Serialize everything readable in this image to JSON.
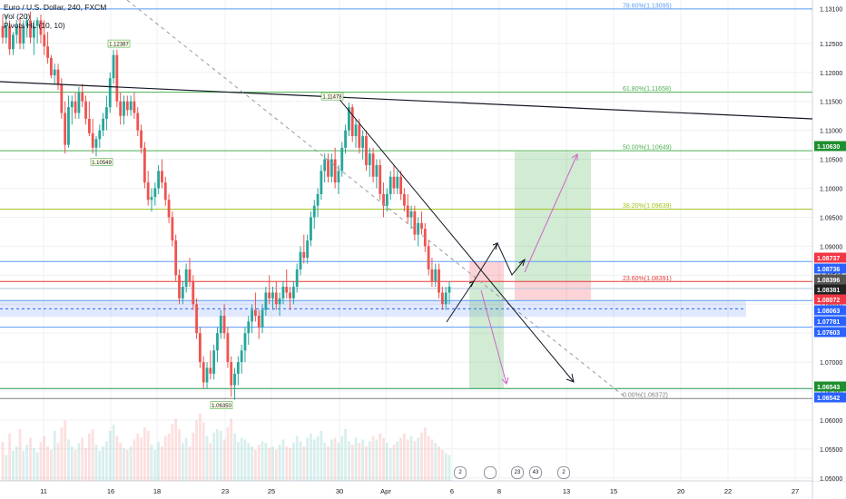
{
  "legend": {
    "symbol": "Euro / U.S. Dollar, 240, FXCM",
    "vol": "Vol (20)",
    "pivots": "Pivots HL (10, 10)"
  },
  "chart_data": {
    "type": "candlestick",
    "symbol": "EURUSD",
    "timeframe": "240",
    "ylim": [
      1.0495,
      1.1325
    ],
    "y_ticks": [
      "1.13100",
      "1.12500",
      "1.12000",
      "1.11500",
      "1.11000",
      "1.10500",
      "1.10000",
      "1.09500",
      "1.09000",
      "1.08500",
      "1.08000",
      "1.07500",
      "1.07000",
      "1.06500",
      "1.06000",
      "1.05500",
      "1.05000"
    ],
    "x_ticks": [
      "11",
      "16",
      "18",
      "23",
      "25",
      "30",
      "Apr",
      "6",
      "8",
      "13",
      "15",
      "20",
      "22",
      "27"
    ],
    "fib_levels": [
      {
        "label": "78.60%(1.13095)",
        "price": 1.13095,
        "color": "#5b9cf6"
      },
      {
        "label": "61.80%(1.11658)",
        "price": 1.11658,
        "color": "#4caf50"
      },
      {
        "label": "50.00%(1.10649)",
        "price": 1.10649,
        "color": "#4caf50"
      },
      {
        "label": "38.20%(1.09639)",
        "price": 1.09639,
        "color": "#9dc31a"
      },
      {
        "label": "23.60%(1.08391)",
        "price": 1.08391,
        "color": "#e53935"
      },
      {
        "label": "0.00%(1.06372)",
        "price": 1.06372,
        "color": "#808080"
      }
    ],
    "pivot_labels": [
      {
        "text": "1.12387",
        "price": 1.12387
      },
      {
        "text": "1.10549",
        "price": 1.10549
      },
      {
        "text": "1.11478",
        "price": 1.11478
      },
      {
        "text": "1.06350",
        "price": 1.0635
      }
    ],
    "price_badges": [
      {
        "text": "1.10630",
        "bg": "#1e8f2e",
        "fg": "#ffffff"
      },
      {
        "text": "1.08737",
        "bg": "#f23645",
        "fg": "#ffffff"
      },
      {
        "text": "1.08736",
        "bg": "#2962ff",
        "fg": "#ffffff"
      },
      {
        "text": "1.08396",
        "bg": "#555555",
        "fg": "#ffffff"
      },
      {
        "text": "1.08381",
        "bg": "#222222",
        "fg": "#ffffff"
      },
      {
        "text": "1.08072",
        "bg": "#f23645",
        "fg": "#ffffff"
      },
      {
        "text": "1.08063",
        "bg": "#2962ff",
        "fg": "#ffffff"
      },
      {
        "text": "1.07781",
        "bg": "#2962ff",
        "fg": "#ffffff"
      },
      {
        "text": "1.07603",
        "bg": "#2962ff",
        "fg": "#ffffff"
      },
      {
        "text": "1.06543",
        "bg": "#1e8f2e",
        "fg": "#ffffff"
      },
      {
        "text": "1.06542",
        "bg": "#2962ff",
        "fg": "#ffffff"
      }
    ],
    "candles": [
      [
        1.128,
        1.13,
        1.125,
        1.126
      ],
      [
        1.126,
        1.13,
        1.125,
        1.128
      ],
      [
        1.128,
        1.129,
        1.123,
        1.124
      ],
      [
        1.124,
        1.127,
        1.123,
        1.1265
      ],
      [
        1.1265,
        1.129,
        1.125,
        1.128
      ],
      [
        1.128,
        1.1295,
        1.124,
        1.125
      ],
      [
        1.125,
        1.129,
        1.124,
        1.128
      ],
      [
        1.128,
        1.13,
        1.126,
        1.129
      ],
      [
        1.129,
        1.1305,
        1.125,
        1.126
      ],
      [
        1.126,
        1.129,
        1.123,
        1.128
      ],
      [
        1.128,
        1.1295,
        1.125,
        1.129
      ],
      [
        1.129,
        1.13,
        1.125,
        1.1265
      ],
      [
        1.1265,
        1.129,
        1.123,
        1.1245
      ],
      [
        1.1245,
        1.127,
        1.1215,
        1.1225
      ],
      [
        1.1225,
        1.123,
        1.119,
        1.1195
      ],
      [
        1.1195,
        1.1215,
        1.118,
        1.1205
      ],
      [
        1.1205,
        1.1215,
        1.117,
        1.118
      ],
      [
        1.118,
        1.119,
        1.112,
        1.113
      ],
      [
        1.113,
        1.115,
        1.106,
        1.1075
      ],
      [
        1.1075,
        1.116,
        1.107,
        1.114
      ],
      [
        1.114,
        1.116,
        1.111,
        1.115
      ],
      [
        1.115,
        1.1165,
        1.112,
        1.113
      ],
      [
        1.113,
        1.1175,
        1.112,
        1.1165
      ],
      [
        1.1165,
        1.118,
        1.114,
        1.115
      ],
      [
        1.115,
        1.116,
        1.111,
        1.112
      ],
      [
        1.112,
        1.115,
        1.109,
        1.1095
      ],
      [
        1.1095,
        1.112,
        1.106,
        1.107
      ],
      [
        1.107,
        1.109,
        1.1055,
        1.1085
      ],
      [
        1.1085,
        1.111,
        1.107,
        1.11
      ],
      [
        1.11,
        1.113,
        1.109,
        1.112
      ],
      [
        1.112,
        1.116,
        1.11,
        1.114
      ],
      [
        1.114,
        1.12,
        1.113,
        1.119
      ],
      [
        1.119,
        1.1239,
        1.118,
        1.123
      ],
      [
        1.123,
        1.1239,
        1.114,
        1.115
      ],
      [
        1.115,
        1.1165,
        1.111,
        1.1125
      ],
      [
        1.1125,
        1.116,
        1.111,
        1.115
      ],
      [
        1.115,
        1.116,
        1.1125,
        1.1135
      ],
      [
        1.1135,
        1.116,
        1.1125,
        1.115
      ],
      [
        1.115,
        1.1165,
        1.112,
        1.113
      ],
      [
        1.113,
        1.114,
        1.109,
        1.11
      ],
      [
        1.11,
        1.111,
        1.106,
        1.107
      ],
      [
        1.107,
        1.108,
        1.1,
        1.101
      ],
      [
        1.101,
        1.103,
        1.097,
        1.098
      ],
      [
        1.098,
        1.1,
        1.096,
        1.0985
      ],
      [
        1.0985,
        1.101,
        1.097,
        1.1
      ],
      [
        1.1,
        1.104,
        1.099,
        1.103
      ],
      [
        1.103,
        1.105,
        1.1,
        1.101
      ],
      [
        1.101,
        1.102,
        1.097,
        1.098
      ],
      [
        1.098,
        1.099,
        1.094,
        1.095
      ],
      [
        1.095,
        1.096,
        1.09,
        1.091
      ],
      [
        1.091,
        1.092,
        1.084,
        1.085
      ],
      [
        1.085,
        1.086,
        1.08,
        1.081
      ],
      [
        1.081,
        1.084,
        1.08,
        1.083
      ],
      [
        1.083,
        1.087,
        1.082,
        1.086
      ],
      [
        1.086,
        1.088,
        1.083,
        1.084
      ],
      [
        1.084,
        1.085,
        1.079,
        1.08
      ],
      [
        1.08,
        1.081,
        1.074,
        1.075
      ],
      [
        1.075,
        1.076,
        1.069,
        1.07
      ],
      [
        1.07,
        1.071,
        1.0655,
        1.0665
      ],
      [
        1.0665,
        1.07,
        1.0655,
        1.069
      ],
      [
        1.069,
        1.072,
        1.067,
        1.068
      ],
      [
        1.068,
        1.073,
        1.067,
        1.072
      ],
      [
        1.072,
        1.076,
        1.07,
        1.075
      ],
      [
        1.075,
        1.079,
        1.074,
        1.078
      ],
      [
        1.078,
        1.08,
        1.074,
        1.075
      ],
      [
        1.075,
        1.076,
        1.069,
        1.07
      ],
      [
        1.07,
        1.071,
        1.064,
        1.066
      ],
      [
        1.066,
        1.069,
        1.0635,
        1.068
      ],
      [
        1.068,
        1.071,
        1.066,
        1.07
      ],
      [
        1.07,
        1.073,
        1.068,
        1.072
      ],
      [
        1.072,
        1.076,
        1.07,
        1.075
      ],
      [
        1.075,
        1.078,
        1.073,
        1.077
      ],
      [
        1.077,
        1.08,
        1.075,
        1.079
      ],
      [
        1.079,
        1.082,
        1.077,
        1.078
      ],
      [
        1.078,
        1.079,
        1.074,
        1.076
      ],
      [
        1.076,
        1.08,
        1.075,
        1.079
      ],
      [
        1.079,
        1.083,
        1.078,
        1.082
      ],
      [
        1.082,
        1.085,
        1.08,
        1.081
      ],
      [
        1.081,
        1.083,
        1.079,
        1.082
      ],
      [
        1.082,
        1.084,
        1.079,
        1.08
      ],
      [
        1.08,
        1.082,
        1.078,
        1.081
      ],
      [
        1.081,
        1.084,
        1.08,
        1.083
      ],
      [
        1.083,
        1.086,
        1.081,
        1.082
      ],
      [
        1.082,
        1.083,
        1.079,
        1.081
      ],
      [
        1.081,
        1.084,
        1.08,
        1.083
      ],
      [
        1.083,
        1.087,
        1.082,
        1.086
      ],
      [
        1.086,
        1.09,
        1.085,
        1.089
      ],
      [
        1.089,
        1.092,
        1.087,
        1.088
      ],
      [
        1.088,
        1.092,
        1.087,
        1.091
      ],
      [
        1.091,
        1.096,
        1.09,
        1.095
      ],
      [
        1.095,
        1.098,
        1.093,
        1.097
      ],
      [
        1.097,
        1.1,
        1.095,
        1.099
      ],
      [
        1.099,
        1.104,
        1.098,
        1.103
      ],
      [
        1.103,
        1.106,
        1.101,
        1.105
      ],
      [
        1.105,
        1.106,
        1.101,
        1.102
      ],
      [
        1.102,
        1.106,
        1.101,
        1.105
      ],
      [
        1.105,
        1.107,
        1.1,
        1.101
      ],
      [
        1.101,
        1.104,
        1.099,
        1.103
      ],
      [
        1.103,
        1.108,
        1.102,
        1.107
      ],
      [
        1.107,
        1.111,
        1.106,
        1.11
      ],
      [
        1.11,
        1.1148,
        1.109,
        1.114
      ],
      [
        1.114,
        1.1145,
        1.108,
        1.109
      ],
      [
        1.109,
        1.112,
        1.107,
        1.111
      ],
      [
        1.111,
        1.112,
        1.106,
        1.107
      ],
      [
        1.107,
        1.11,
        1.105,
        1.109
      ],
      [
        1.109,
        1.11,
        1.103,
        1.104
      ],
      [
        1.104,
        1.107,
        1.102,
        1.106
      ],
      [
        1.106,
        1.107,
        1.101,
        1.102
      ],
      [
        1.102,
        1.105,
        1.1,
        1.104
      ],
      [
        1.104,
        1.105,
        1.098,
        1.099
      ],
      [
        1.099,
        1.101,
        1.095,
        1.097
      ],
      [
        1.097,
        1.1,
        1.096,
        1.099
      ],
      [
        1.099,
        1.103,
        1.098,
        1.102
      ],
      [
        1.102,
        1.104,
        1.099,
        1.1
      ],
      [
        1.1,
        1.103,
        1.099,
        1.102
      ],
      [
        1.102,
        1.103,
        1.098,
        1.099
      ],
      [
        1.099,
        1.1,
        1.096,
        1.097
      ],
      [
        1.097,
        1.099,
        1.094,
        1.095
      ],
      [
        1.095,
        1.097,
        1.093,
        1.096
      ],
      [
        1.096,
        1.097,
        1.091,
        1.092
      ],
      [
        1.092,
        1.095,
        1.09,
        1.094
      ],
      [
        1.094,
        1.096,
        1.092,
        1.093
      ],
      [
        1.093,
        1.094,
        1.089,
        1.09
      ],
      [
        1.09,
        1.091,
        1.085,
        1.086
      ],
      [
        1.086,
        1.088,
        1.083,
        1.084
      ],
      [
        1.084,
        1.087,
        1.083,
        1.086
      ],
      [
        1.086,
        1.087,
        1.081,
        1.082
      ],
      [
        1.082,
        1.083,
        1.079,
        1.08
      ],
      [
        1.08,
        1.083,
        1.079,
        1.082
      ],
      [
        1.082,
        1.084,
        1.08,
        1.083
      ]
    ],
    "volumes": [
      0.45,
      0.3,
      0.55,
      0.35,
      0.4,
      0.6,
      0.35,
      0.42,
      0.5,
      0.38,
      0.33,
      0.45,
      0.52,
      0.4,
      0.36,
      0.58,
      0.44,
      0.62,
      0.7,
      0.48,
      0.4,
      0.36,
      0.44,
      0.5,
      0.38,
      0.55,
      0.6,
      0.42,
      0.35,
      0.4,
      0.46,
      0.58,
      0.65,
      0.52,
      0.44,
      0.38,
      0.36,
      0.4,
      0.48,
      0.55,
      0.5,
      0.62,
      0.58,
      0.42,
      0.36,
      0.45,
      0.4,
      0.52,
      0.55,
      0.66,
      0.72,
      0.6,
      0.44,
      0.5,
      0.4,
      0.56,
      0.7,
      0.78,
      0.68,
      0.52,
      0.44,
      0.56,
      0.6,
      0.58,
      0.48,
      0.62,
      0.72,
      0.55,
      0.45,
      0.5,
      0.48,
      0.44,
      0.4,
      0.36,
      0.42,
      0.46,
      0.44,
      0.38,
      0.4,
      0.36,
      0.42,
      0.48,
      0.4,
      0.38,
      0.44,
      0.52,
      0.46,
      0.4,
      0.5,
      0.55,
      0.48,
      0.52,
      0.58,
      0.44,
      0.4,
      0.48,
      0.5,
      0.44,
      0.52,
      0.6,
      0.46,
      0.42,
      0.5,
      0.44,
      0.48,
      0.4,
      0.46,
      0.52,
      0.48,
      0.55,
      0.5,
      0.44,
      0.38,
      0.42,
      0.46,
      0.5,
      0.55,
      0.48,
      0.52,
      0.46,
      0.5,
      0.56,
      0.62,
      0.52,
      0.48,
      0.44,
      0.4,
      0.36,
      0.32,
      0.3
    ]
  },
  "events": [
    "2",
    "23",
    "43",
    "2"
  ]
}
